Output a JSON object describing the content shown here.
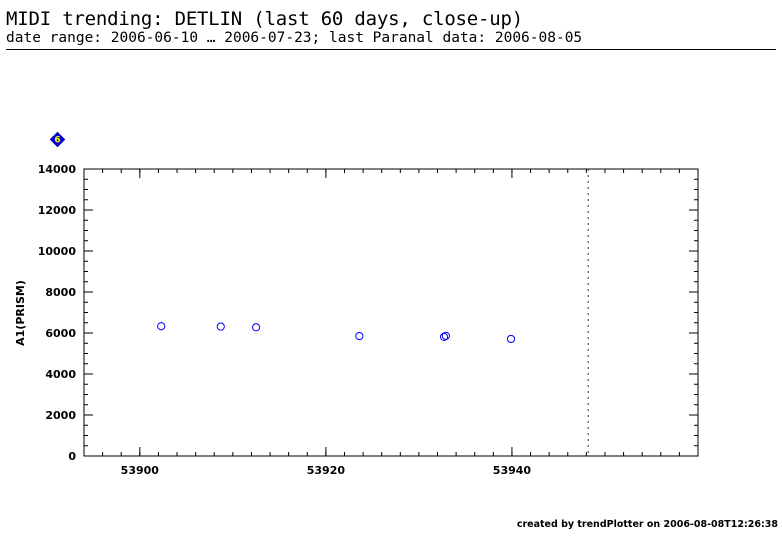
{
  "header": {
    "title": "MIDI trending: DETLIN (last 60 days, close-up)",
    "subtitle": "date range: 2006-06-10 … 2006-07-23; last Paranal data: 2006-08-05"
  },
  "footer": {
    "credit": "created by trendPlotter on 2006-08-08T12:26:38"
  },
  "badge": {
    "label": "6",
    "color": "#0000cc",
    "text_color": "#ffff00"
  },
  "colors": {
    "points": "#0000ff",
    "marker_line": "#555555"
  },
  "chart_data": {
    "type": "scatter",
    "ylabel": "A1(PRISM)",
    "xlim": [
      53894,
      53960
    ],
    "ylim": [
      0,
      14000
    ],
    "x_ticks": [
      53900,
      53920,
      53940
    ],
    "y_ticks": [
      0,
      2000,
      4000,
      6000,
      8000,
      10000,
      12000,
      14000
    ],
    "x_minor_step": 2,
    "y_minor_step": 500,
    "vline": 53948.2,
    "grid": false,
    "points": [
      {
        "x": 53902.3,
        "y": 6330
      },
      {
        "x": 53908.7,
        "y": 6310
      },
      {
        "x": 53912.5,
        "y": 6280
      },
      {
        "x": 53923.6,
        "y": 5850
      },
      {
        "x": 53932.7,
        "y": 5810
      },
      {
        "x": 53932.9,
        "y": 5860
      },
      {
        "x": 53939.9,
        "y": 5710
      }
    ]
  }
}
